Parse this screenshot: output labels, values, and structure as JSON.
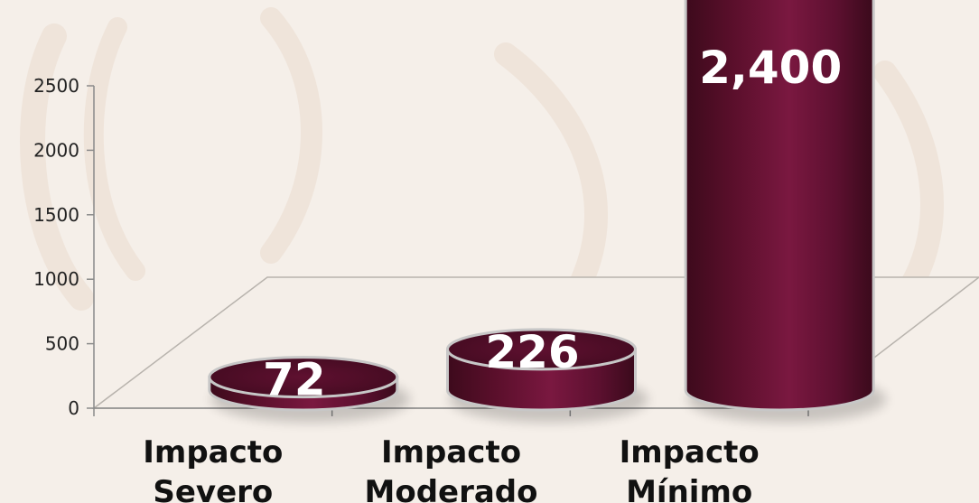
{
  "colors": {
    "background": "#f5efe9",
    "bar": "#6b1334",
    "bar_dark": "#4a0c22",
    "bar_top": "#5a0e29",
    "rim": "#c7c7c7"
  },
  "chart_data": {
    "type": "bar",
    "style": "3d-cylinder",
    "categories": [
      [
        "Impacto",
        "Severo"
      ],
      [
        "Impacto",
        "Moderado"
      ],
      [
        "Impacto",
        "Mínimo"
      ]
    ],
    "values": [
      72,
      226,
      2400
    ],
    "data_labels": [
      "72",
      "226",
      "2,400"
    ],
    "ylim": [
      0,
      2500
    ],
    "yticks": [
      0,
      500,
      1000,
      1500,
      2000,
      2500
    ],
    "grid": false,
    "legend": "none"
  }
}
